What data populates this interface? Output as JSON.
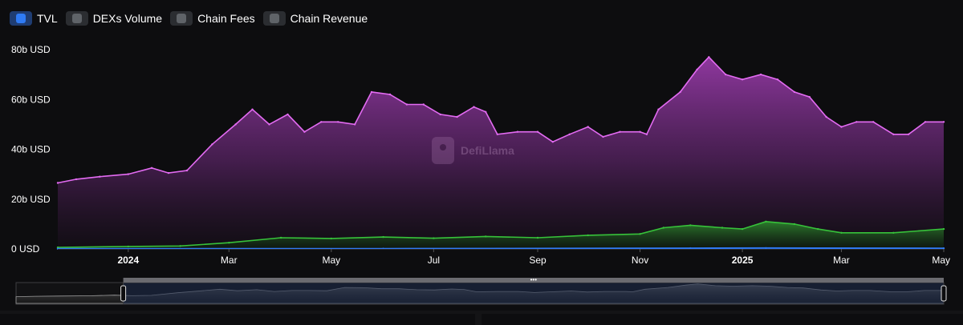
{
  "legend": [
    {
      "label": "TVL",
      "active": true
    },
    {
      "label": "DEXs Volume",
      "active": false
    },
    {
      "label": "Chain Fees",
      "active": false
    },
    {
      "label": "Chain Revenue",
      "active": false
    }
  ],
  "watermark": "DefiLlama",
  "colors": {
    "tvl": "#e36bf2",
    "dexs_volume": "#37c23a",
    "chain_fees": "#2f7bf5",
    "background": "#0d0d0f",
    "axis_text": "#ffffff"
  },
  "chart_data": {
    "type": "area",
    "title": "",
    "x_range": [
      "2023-11-20",
      "2025-05-01"
    ],
    "x_ticks": [
      {
        "label": "2024",
        "date": "2024-01-01",
        "bold": true
      },
      {
        "label": "Mar",
        "date": "2024-03-01"
      },
      {
        "label": "May",
        "date": "2024-05-01"
      },
      {
        "label": "Jul",
        "date": "2024-07-01"
      },
      {
        "label": "Sep",
        "date": "2024-09-01"
      },
      {
        "label": "Nov",
        "date": "2024-11-01"
      },
      {
        "label": "2025",
        "date": "2025-01-01",
        "bold": true
      },
      {
        "label": "Mar",
        "date": "2025-03-01"
      },
      {
        "label": "May",
        "date": "2025-05-01"
      }
    ],
    "y_ticks": [
      {
        "label": "0 USD",
        "value": 0
      },
      {
        "label": "20b USD",
        "value": 20
      },
      {
        "label": "40b USD",
        "value": 40
      },
      {
        "label": "60b USD",
        "value": 60
      },
      {
        "label": "80b USD",
        "value": 80
      }
    ],
    "ylim": [
      0,
      80
    ],
    "series": [
      {
        "name": "TVL",
        "color": "#e36bf2",
        "points": [
          [
            "2023-11-20",
            26.5
          ],
          [
            "2023-12-01",
            28
          ],
          [
            "2023-12-15",
            29
          ],
          [
            "2024-01-01",
            30
          ],
          [
            "2024-01-15",
            32.5
          ],
          [
            "2024-01-25",
            30.5
          ],
          [
            "2024-02-05",
            31.5
          ],
          [
            "2024-02-20",
            42
          ],
          [
            "2024-03-05",
            50
          ],
          [
            "2024-03-15",
            56
          ],
          [
            "2024-03-25",
            50
          ],
          [
            "2024-04-05",
            54
          ],
          [
            "2024-04-15",
            47
          ],
          [
            "2024-04-25",
            51
          ],
          [
            "2024-05-05",
            51
          ],
          [
            "2024-05-15",
            50
          ],
          [
            "2024-05-25",
            63
          ],
          [
            "2024-06-05",
            62
          ],
          [
            "2024-06-15",
            58
          ],
          [
            "2024-06-25",
            58
          ],
          [
            "2024-07-05",
            54
          ],
          [
            "2024-07-15",
            53
          ],
          [
            "2024-07-25",
            57
          ],
          [
            "2024-08-01",
            55
          ],
          [
            "2024-08-08",
            46
          ],
          [
            "2024-08-20",
            47
          ],
          [
            "2024-09-01",
            47
          ],
          [
            "2024-09-10",
            43
          ],
          [
            "2024-09-20",
            46
          ],
          [
            "2024-10-01",
            49
          ],
          [
            "2024-10-10",
            45
          ],
          [
            "2024-10-20",
            47
          ],
          [
            "2024-11-01",
            47
          ],
          [
            "2024-11-05",
            46
          ],
          [
            "2024-11-12",
            56
          ],
          [
            "2024-11-25",
            63
          ],
          [
            "2024-12-05",
            72
          ],
          [
            "2024-12-12",
            77
          ],
          [
            "2024-12-22",
            70
          ],
          [
            "2025-01-01",
            68
          ],
          [
            "2025-01-12",
            70
          ],
          [
            "2025-01-22",
            68
          ],
          [
            "2025-02-01",
            63
          ],
          [
            "2025-02-10",
            61
          ],
          [
            "2025-02-20",
            53
          ],
          [
            "2025-03-01",
            49
          ],
          [
            "2025-03-10",
            51
          ],
          [
            "2025-03-20",
            51
          ],
          [
            "2025-04-01",
            46
          ],
          [
            "2025-04-10",
            46
          ],
          [
            "2025-04-20",
            51
          ],
          [
            "2025-05-01",
            51
          ]
        ]
      },
      {
        "name": "DEXs Volume",
        "color": "#37c23a",
        "points": [
          [
            "2023-11-20",
            0.6
          ],
          [
            "2024-01-01",
            1
          ],
          [
            "2024-02-01",
            1.2
          ],
          [
            "2024-03-01",
            2.5
          ],
          [
            "2024-04-01",
            4.5
          ],
          [
            "2024-05-01",
            4.2
          ],
          [
            "2024-06-01",
            4.8
          ],
          [
            "2024-07-01",
            4.3
          ],
          [
            "2024-08-01",
            5
          ],
          [
            "2024-09-01",
            4.5
          ],
          [
            "2024-10-01",
            5.5
          ],
          [
            "2024-11-01",
            6
          ],
          [
            "2024-11-15",
            8.5
          ],
          [
            "2024-12-01",
            9.5
          ],
          [
            "2024-12-20",
            8.5
          ],
          [
            "2025-01-01",
            8
          ],
          [
            "2025-01-15",
            11
          ],
          [
            "2025-02-01",
            10
          ],
          [
            "2025-02-15",
            8
          ],
          [
            "2025-03-01",
            6.5
          ],
          [
            "2025-04-01",
            6.5
          ],
          [
            "2025-05-01",
            8
          ]
        ]
      },
      {
        "name": "Chain Fees",
        "color": "#2f7bf5",
        "points": [
          [
            "2023-11-20",
            0.05
          ],
          [
            "2024-06-01",
            0.1
          ],
          [
            "2024-12-01",
            0.3
          ],
          [
            "2025-01-15",
            0.35
          ],
          [
            "2025-05-01",
            0.25
          ]
        ]
      }
    ],
    "overview": {
      "selected_range": [
        "2024-01-20",
        "2025-05-01"
      ]
    }
  }
}
